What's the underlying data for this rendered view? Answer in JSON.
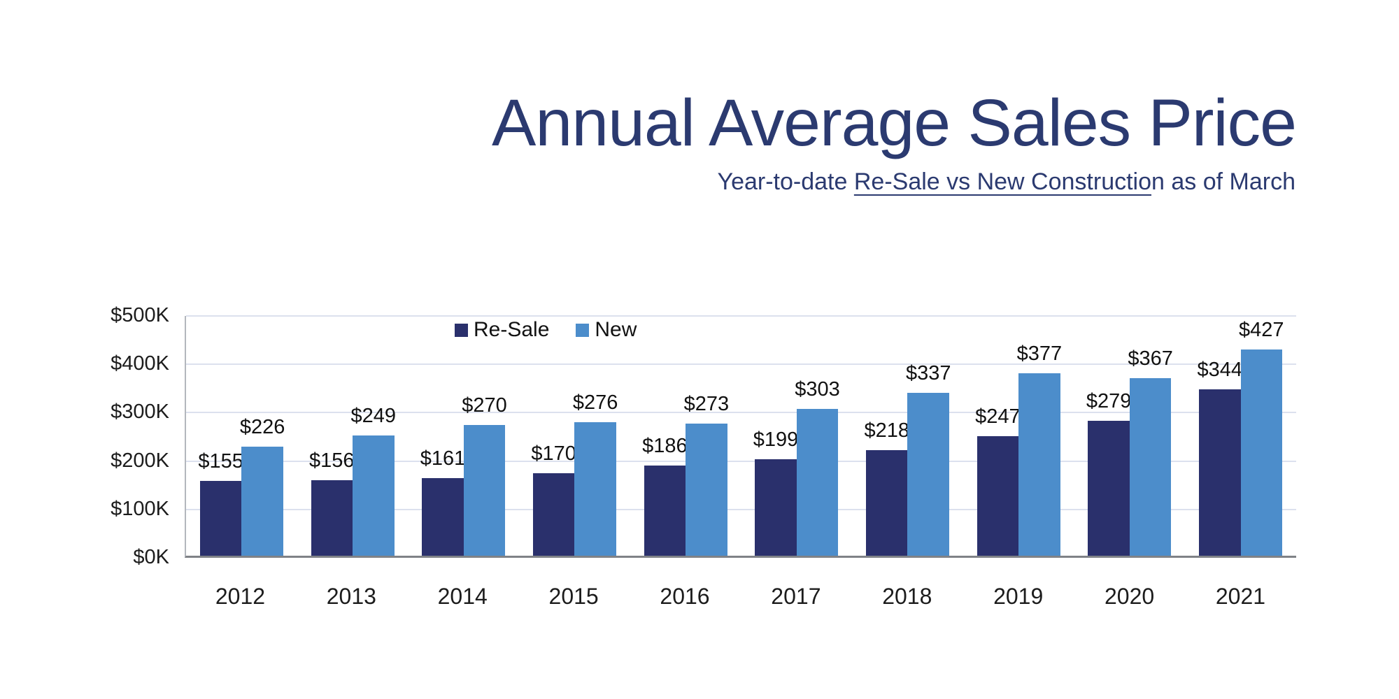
{
  "header": {
    "title": "Annual Average Sales Price",
    "subtitle_prefix": "Year-to-date ",
    "subtitle_underline": "Re-Sale vs New Constructio",
    "subtitle_suffix": "n as of March"
  },
  "colors": {
    "title_navy": "#2B3A70",
    "resale_bar": "#2A306C",
    "new_bar": "#4C8DCB",
    "gridline": "#dce1ee",
    "axis_line": "#7f8287"
  },
  "chart_data": {
    "type": "bar",
    "title": "Annual Average Sales Price",
    "subtitle": "Year-to-date Re-Sale vs New Construction as of March",
    "categories": [
      "2012",
      "2013",
      "2014",
      "2015",
      "2016",
      "2017",
      "2018",
      "2019",
      "2020",
      "2021"
    ],
    "series": [
      {
        "name": "Re-Sale",
        "color": "#2A306C",
        "values": [
          155,
          156,
          161,
          170,
          186,
          199,
          218,
          247,
          279,
          344
        ]
      },
      {
        "name": "New",
        "color": "#4C8DCB",
        "values": [
          226,
          249,
          270,
          276,
          273,
          303,
          337,
          377,
          367,
          427
        ]
      }
    ],
    "value_prefix": "$",
    "value_suffix_axis": "K",
    "y_ticks": [
      "$0K",
      "$100K",
      "$200K",
      "$300K",
      "$400K",
      "$500K"
    ],
    "y_tick_values": [
      0,
      100,
      200,
      300,
      400,
      500
    ],
    "ylim": [
      0,
      500
    ],
    "xlabel": "",
    "ylabel": "",
    "grid": true,
    "legend_position": "inside-top-left",
    "legend": [
      "Re-Sale",
      "New"
    ]
  }
}
